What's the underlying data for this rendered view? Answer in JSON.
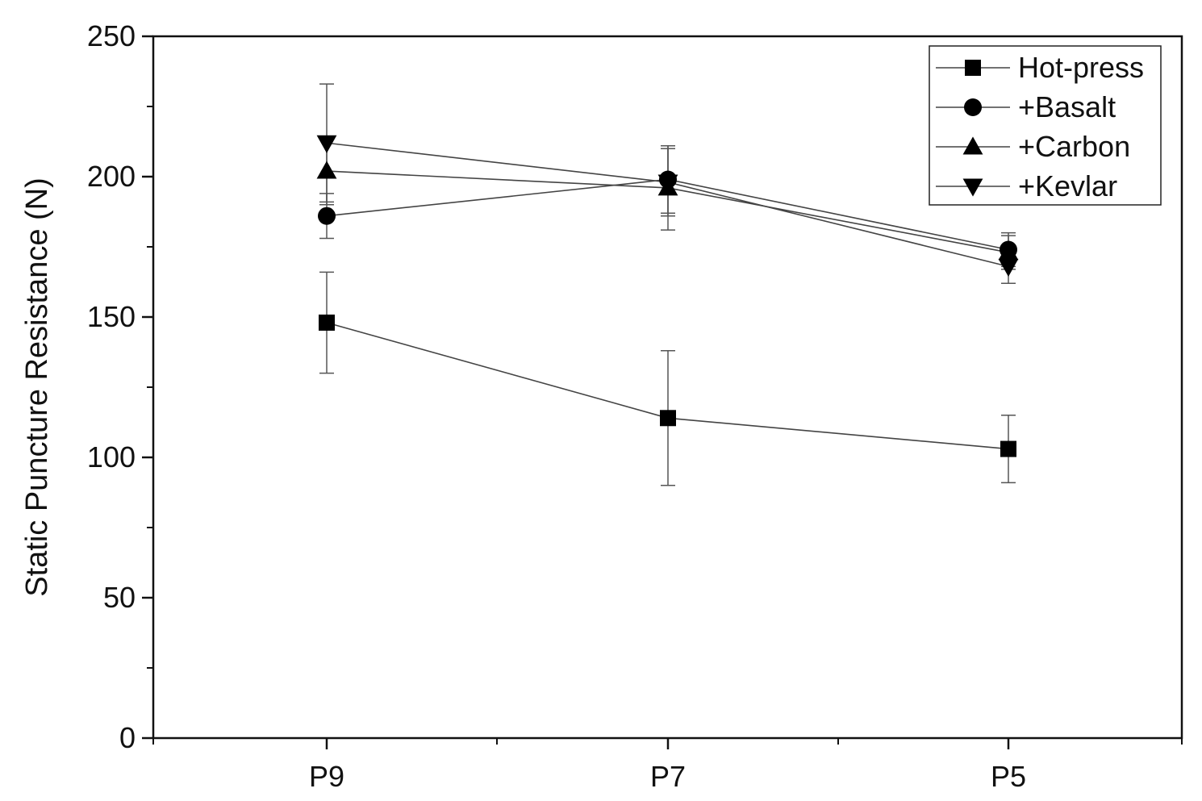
{
  "chart_data": {
    "type": "line",
    "title": "",
    "xlabel": "",
    "ylabel": "Static Puncture Resistance (N)",
    "categories": [
      "P9",
      "P7",
      "P5"
    ],
    "ylim": [
      0,
      250
    ],
    "yticks": [
      0,
      50,
      100,
      150,
      200,
      250
    ],
    "grid": false,
    "legend_position": "top-right",
    "error_bars": true,
    "series": [
      {
        "name": "Hot-press",
        "marker": "square",
        "values": [
          148,
          114,
          103
        ],
        "errors": [
          18,
          24,
          12
        ]
      },
      {
        "name": "+Basalt",
        "marker": "circle",
        "values": [
          186,
          199,
          174
        ],
        "errors": [
          8,
          12,
          6
        ]
      },
      {
        "name": "+Carbon",
        "marker": "triangle-up",
        "values": [
          202,
          196,
          173
        ],
        "errors": [
          12,
          15,
          6
        ]
      },
      {
        "name": "+Kevlar",
        "marker": "triangle-down",
        "values": [
          212,
          198,
          168
        ],
        "errors": [
          21,
          12,
          6
        ]
      }
    ]
  }
}
